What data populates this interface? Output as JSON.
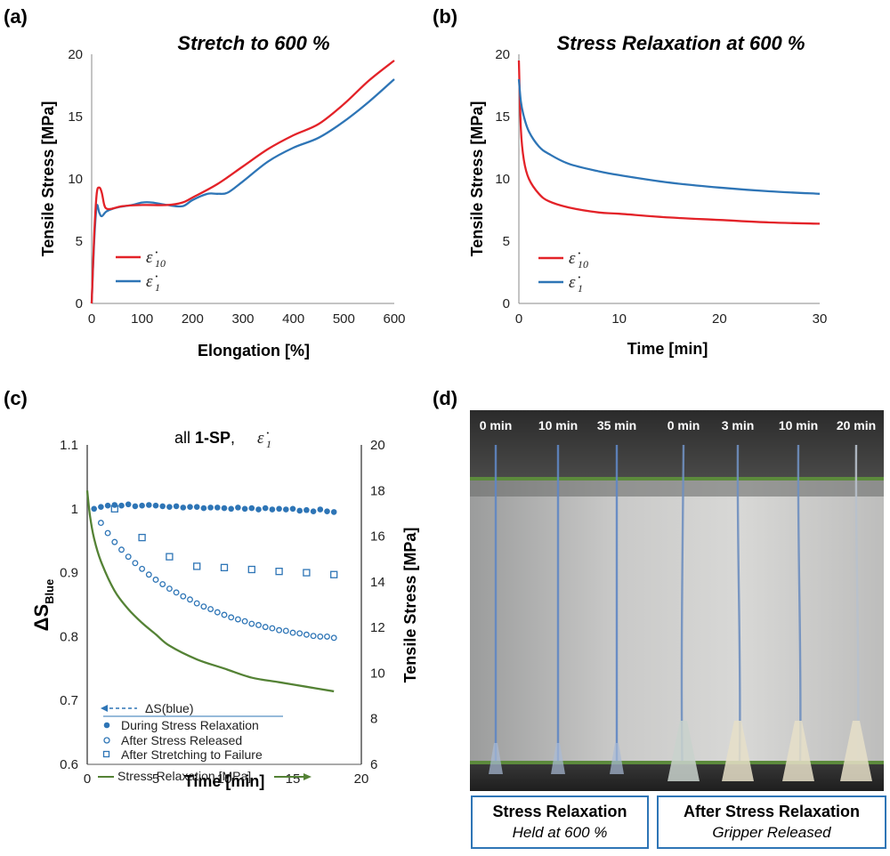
{
  "panels": {
    "a": {
      "letter": "(a)",
      "title": "Stretch to 600 %",
      "xlabel": "Elongation [%]",
      "ylabel": "Tensile Stress [MPa]",
      "xticks": [
        "0",
        "100",
        "200",
        "300",
        "400",
        "500",
        "600"
      ],
      "yticks": [
        "0",
        "5",
        "10",
        "15",
        "20"
      ]
    },
    "b": {
      "letter": "(b)",
      "title": "Stress Relaxation at 600 %",
      "xlabel": "Time [min]",
      "ylabel": "Tensile Stress [MPa]",
      "xticks": [
        "0",
        "10",
        "20",
        "30"
      ],
      "yticks": [
        "0",
        "5",
        "10",
        "15",
        "20"
      ]
    },
    "c": {
      "letter": "(c)",
      "title_prefix": "all ",
      "title_bold": "1-SP",
      "title_sep": ", ",
      "xlabel": "Time [min]",
      "ylabel_main": "ΔS",
      "ylabel_sub": "Blue",
      "ylabel_right": "Tensile Stress [MPa]",
      "xticks": [
        "0",
        "5",
        "10",
        "15",
        "20"
      ],
      "yticks_left": [
        "0.6",
        "0.7",
        "0.8",
        "0.9",
        "1",
        "1.1"
      ],
      "yticks_right": [
        "6",
        "8",
        "10",
        "12",
        "14",
        "16",
        "18",
        "20"
      ],
      "legend": {
        "group_title": "ΔS(blue)",
        "during": "During Stress Relaxation",
        "after_release": "After Stress Released",
        "after_failure": "After Stretching to Failure",
        "stress": "Stress Relaxation [MPa]"
      }
    },
    "d": {
      "letter": "(d)",
      "time_labels": [
        "0 min",
        "10 min",
        "35 min",
        "0 min",
        "3 min",
        "10 min",
        "20 min"
      ],
      "caption_left_title": "Stress Relaxation",
      "caption_left_sub": "Held at 600 %",
      "caption_right_title": "After Stress Relaxation",
      "caption_right_sub": "Gripper Released"
    }
  },
  "legend_rates": {
    "symbol": "ε̇",
    "rate10": "10",
    "rate1": "1"
  },
  "colors": {
    "red": "#e32228",
    "blue": "#2e75b6",
    "green": "#548235",
    "marker_blue": "#2e75b6"
  },
  "chart_data": [
    {
      "panel": "a",
      "type": "line",
      "title": "Stretch to 600 %",
      "xlabel": "Elongation [%]",
      "ylabel": "Tensile Stress [MPa]",
      "xlim": [
        0,
        600
      ],
      "ylim": [
        0,
        20
      ],
      "legend_position": "center-left",
      "series": [
        {
          "name": "ε̇10",
          "color": "#e32228",
          "x": [
            0,
            5,
            10,
            15,
            20,
            25,
            30,
            40,
            60,
            100,
            150,
            180,
            200,
            250,
            300,
            350,
            400,
            450,
            500,
            550,
            600
          ],
          "y": [
            0,
            5.5,
            8.8,
            9.3,
            8.9,
            7.9,
            7.6,
            7.6,
            7.8,
            7.9,
            7.9,
            8.1,
            8.5,
            9.6,
            11.0,
            12.4,
            13.5,
            14.4,
            16.0,
            17.9,
            19.5
          ]
        },
        {
          "name": "ε̇1",
          "color": "#2e75b6",
          "x": [
            0,
            5,
            10,
            15,
            20,
            30,
            50,
            80,
            100,
            120,
            150,
            180,
            200,
            230,
            250,
            270,
            300,
            350,
            400,
            450,
            500,
            550,
            600
          ],
          "y": [
            0,
            5.0,
            7.8,
            7.3,
            7.0,
            7.4,
            7.7,
            7.9,
            8.1,
            8.1,
            7.9,
            7.8,
            8.3,
            8.8,
            8.8,
            8.9,
            9.8,
            11.4,
            12.5,
            13.3,
            14.6,
            16.2,
            18.0
          ]
        }
      ]
    },
    {
      "panel": "b",
      "type": "line",
      "title": "Stress Relaxation at 600 %",
      "xlabel": "Time [min]",
      "ylabel": "Tensile Stress [MPa]",
      "xlim": [
        0,
        30
      ],
      "ylim": [
        0,
        20
      ],
      "legend_position": "bottom-left",
      "series": [
        {
          "name": "ε̇10",
          "color": "#e32228",
          "x": [
            0,
            0.2,
            0.5,
            1,
            2,
            3,
            5,
            8,
            10,
            15,
            20,
            25,
            30
          ],
          "y": [
            19.5,
            14.0,
            11.5,
            10.0,
            8.8,
            8.2,
            7.7,
            7.3,
            7.2,
            6.9,
            6.7,
            6.5,
            6.4
          ]
        },
        {
          "name": "ε̇1",
          "color": "#2e75b6",
          "x": [
            0,
            0.2,
            0.5,
            1,
            2,
            3,
            5,
            8,
            10,
            15,
            20,
            25,
            30
          ],
          "y": [
            18.0,
            16.2,
            15.0,
            13.8,
            12.6,
            12.0,
            11.2,
            10.6,
            10.3,
            9.7,
            9.3,
            9.0,
            8.8
          ]
        }
      ]
    },
    {
      "panel": "c",
      "type": "scatter",
      "title": "all 1-SP, ε̇1",
      "xlabel": "Time [min]",
      "ylabel": "ΔS Blue",
      "ylabel_right": "Tensile Stress [MPa]",
      "xlim": [
        0,
        20
      ],
      "ylim": [
        0.6,
        1.1
      ],
      "ylim_right": [
        6,
        20
      ],
      "legend_position": "bottom-left",
      "series": [
        {
          "name": "During Stress Relaxation",
          "marker": "filled-circle",
          "color": "#2e75b6",
          "axis": "left",
          "x": [
            0.5,
            1.0,
            1.5,
            2.0,
            2.5,
            3.0,
            3.5,
            4.0,
            4.5,
            5.0,
            5.5,
            6.0,
            6.5,
            7.0,
            7.5,
            8.0,
            8.5,
            9.0,
            9.5,
            10.0,
            10.5,
            11.0,
            11.5,
            12.0,
            12.5,
            13.0,
            13.5,
            14.0,
            14.5,
            15.0,
            15.5,
            16.0,
            16.5,
            17.0,
            17.5,
            18.0
          ],
          "y": [
            1.0,
            1.003,
            1.005,
            1.006,
            1.005,
            1.007,
            1.004,
            1.005,
            1.006,
            1.005,
            1.004,
            1.003,
            1.004,
            1.002,
            1.003,
            1.003,
            1.001,
            1.002,
            1.002,
            1.001,
            1.0,
            1.002,
            1.0,
            1.001,
            0.999,
            1.001,
            0.999,
            1.0,
            0.999,
            1.0,
            0.997,
            0.998,
            0.996,
            0.999,
            0.996,
            0.995
          ]
        },
        {
          "name": "After Stress Released",
          "marker": "open-circle",
          "color": "#2e75b6",
          "axis": "left",
          "x": [
            1.0,
            1.5,
            2.0,
            2.5,
            3.0,
            3.5,
            4.0,
            4.5,
            5.0,
            5.5,
            6.0,
            6.5,
            7.0,
            7.5,
            8.0,
            8.5,
            9.0,
            9.5,
            10.0,
            10.5,
            11.0,
            11.5,
            12.0,
            12.5,
            13.0,
            13.5,
            14.0,
            14.5,
            15.0,
            15.5,
            16.0,
            16.5,
            17.0,
            17.5,
            18.0
          ],
          "y": [
            0.978,
            0.962,
            0.948,
            0.936,
            0.925,
            0.915,
            0.906,
            0.897,
            0.889,
            0.882,
            0.875,
            0.869,
            0.863,
            0.858,
            0.852,
            0.847,
            0.843,
            0.838,
            0.834,
            0.83,
            0.827,
            0.824,
            0.82,
            0.818,
            0.815,
            0.813,
            0.81,
            0.809,
            0.806,
            0.805,
            0.803,
            0.801,
            0.8,
            0.8,
            0.798
          ]
        },
        {
          "name": "After Stretching to Failure",
          "marker": "open-square",
          "color": "#2e75b6",
          "axis": "left",
          "x": [
            2,
            4,
            6,
            8,
            10,
            12,
            14,
            16,
            18
          ],
          "y": [
            1.0,
            0.955,
            0.925,
            0.91,
            0.908,
            0.905,
            0.902,
            0.9,
            0.897
          ]
        },
        {
          "name": "Stress Relaxation [MPa]",
          "marker": "line",
          "color": "#548235",
          "axis": "right",
          "x": [
            0,
            0.2,
            0.5,
            1,
            2,
            3,
            4,
            5,
            6,
            8,
            10,
            12,
            14,
            16,
            18
          ],
          "y": [
            18.0,
            16.9,
            15.9,
            14.9,
            13.6,
            12.8,
            12.2,
            11.7,
            11.2,
            10.6,
            10.2,
            9.8,
            9.6,
            9.4,
            9.2
          ]
        }
      ]
    }
  ]
}
